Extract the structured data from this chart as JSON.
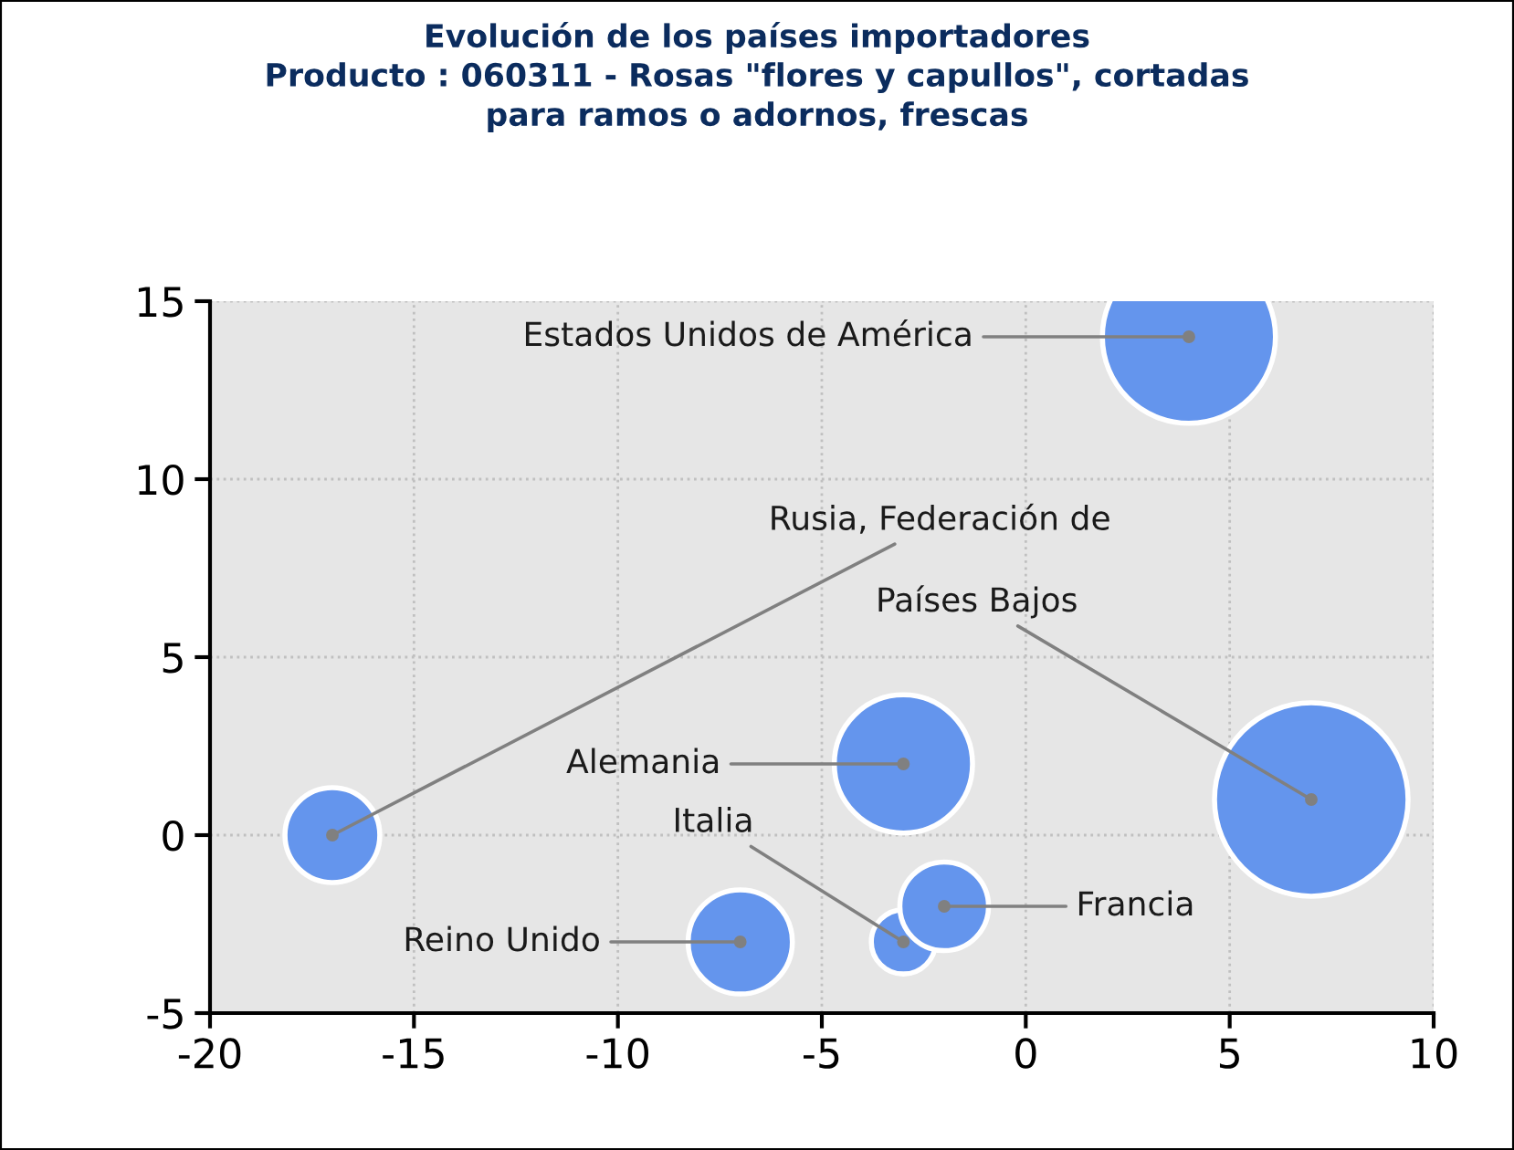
{
  "chart_data": {
    "type": "bubble",
    "title": "Evolución de los países importadores\nProducto : 060311 - Rosas \"flores y capullos\", cortadas\npara ramos o adornos, frescas",
    "x": [
      4,
      -17,
      7,
      -3,
      -3,
      -2,
      -7
    ],
    "values": [
      14,
      0,
      1,
      2,
      -3,
      -2,
      -3
    ],
    "sizes": [
      0.8,
      0.24,
      1,
      0.51,
      0.11,
      0.21,
      0.29
    ],
    "color": "#6495ed",
    "annotations": [
      {
        "text": "Estados Unidos de América",
        "x": 4,
        "y": 14
      },
      {
        "text": "Rusia, Federación de",
        "x": -17,
        "y": 0
      },
      {
        "text": "Países Bajos",
        "x": 7,
        "y": 1
      },
      {
        "text": "Alemania",
        "x": -3,
        "y": 2
      },
      {
        "text": "Italia",
        "x": -3,
        "y": -3
      },
      {
        "text": "Francia",
        "x": -2,
        "y": -2
      },
      {
        "text": "Reino Unido",
        "x": -7,
        "y": -3
      }
    ],
    "xlim": [
      -20,
      10
    ],
    "xticks": [
      -20,
      -15,
      -10,
      -5,
      0,
      5,
      10
    ],
    "ylim": [
      -5,
      15
    ],
    "yticks": [
      -5,
      0,
      5,
      10,
      15
    ],
    "grid": true,
    "legend": false
  }
}
